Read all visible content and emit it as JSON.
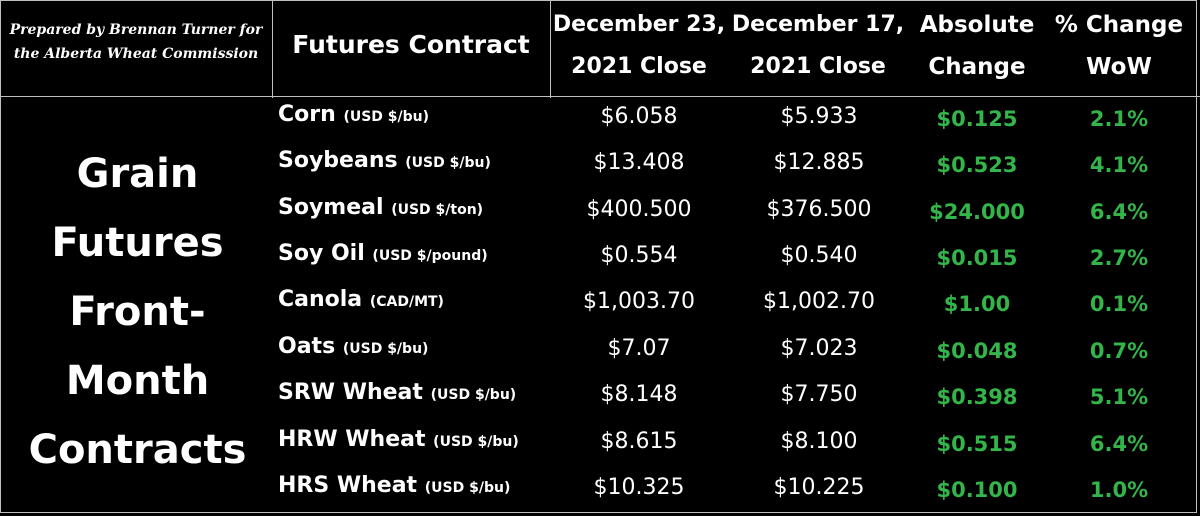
{
  "credit": {
    "line1": "Prepared by Brennan Turner for",
    "line2": "the Alberta Wheat Commission"
  },
  "header": {
    "contract": "Futures Contract",
    "dec23_line1": "December 23,",
    "dec23_line2": "2021 Close",
    "dec17_line1": "December 17,",
    "dec17_line2": "2021 Close",
    "abs_line1": "Absolute",
    "abs_line2": "Change",
    "pct_line1": "% Change",
    "pct_line2": "WoW"
  },
  "side_title": [
    "Grain",
    "Futures",
    "Front-",
    "Month",
    "Contracts"
  ],
  "colors": {
    "background": "#000000",
    "text": "#ffffff",
    "positive": "#33b54a",
    "grid": "#bfbfbf"
  },
  "rows": [
    {
      "name": "Corn",
      "unit": "(USD $/bu)",
      "dec23": "$6.058",
      "dec17": "$5.933",
      "abs": "$0.125",
      "pct": "2.1%"
    },
    {
      "name": "Soybeans",
      "unit": "(USD $/bu)",
      "dec23": "$13.408",
      "dec17": "$12.885",
      "abs": "$0.523",
      "pct": "4.1%"
    },
    {
      "name": "Soymeal",
      "unit": "(USD $/ton)",
      "dec23": "$400.500",
      "dec17": "$376.500",
      "abs": "$24.000",
      "pct": "6.4%"
    },
    {
      "name": "Soy Oil",
      "unit": "(USD $/pound)",
      "dec23": "$0.554",
      "dec17": "$0.540",
      "abs": "$0.015",
      "pct": "2.7%"
    },
    {
      "name": "Canola",
      "unit": "(CAD/MT)",
      "dec23": "$1,003.70",
      "dec17": "$1,002.70",
      "abs": "$1.00",
      "pct": "0.1%"
    },
    {
      "name": "Oats",
      "unit": "(USD $/bu)",
      "dec23": "$7.07",
      "dec17": "$7.023",
      "abs": "$0.048",
      "pct": "0.7%"
    },
    {
      "name": "SRW Wheat",
      "unit": "(USD $/bu)",
      "dec23": "$8.148",
      "dec17": "$7.750",
      "abs": "$0.398",
      "pct": "5.1%"
    },
    {
      "name": "HRW Wheat",
      "unit": "(USD $/bu)",
      "dec23": "$8.615",
      "dec17": "$8.100",
      "abs": "$0.515",
      "pct": "6.4%"
    },
    {
      "name": "HRS Wheat",
      "unit": "(USD $/bu)",
      "dec23": "$10.325",
      "dec17": "$10.225",
      "abs": "$0.100",
      "pct": "1.0%"
    }
  ]
}
